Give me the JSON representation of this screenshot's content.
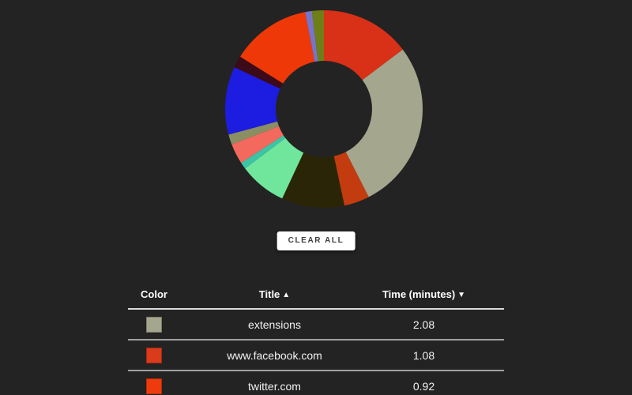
{
  "page": {
    "background": "#232323"
  },
  "chart_data": {
    "type": "donut",
    "legend_position": "none",
    "grid": false,
    "outer_radius_px": 125,
    "inner_radius_px": 61,
    "start_angle_deg": 0,
    "direction": "clockwise",
    "segments": [
      {
        "title": "www.facebook.com",
        "minutes": 1.08,
        "sweep_deg": 53,
        "color": "#d93018"
      },
      {
        "title": "extensions",
        "minutes": 2.08,
        "sweep_deg": 100,
        "color": "#a5a68e"
      },
      {
        "sweep_deg": 15,
        "color": "#c33c0f"
      },
      {
        "sweep_deg": 37,
        "color": "#2b2507"
      },
      {
        "sweep_deg": 28,
        "color": "#70e59c"
      },
      {
        "sweep_deg": 4,
        "color": "#3cc4a5"
      },
      {
        "sweep_deg": 12,
        "color": "#f4695e"
      },
      {
        "sweep_deg": 6,
        "color": "#8b8e63"
      },
      {
        "sweep_deg": 40,
        "color": "#1d1ce1"
      },
      {
        "sweep_deg": 7,
        "color": "#3c0a18"
      },
      {
        "title": "twitter.com",
        "minutes": 0.92,
        "sweep_deg": 47,
        "color": "#ee3807"
      },
      {
        "sweep_deg": 4,
        "color": "#7a74c9"
      },
      {
        "sweep_deg": 7,
        "color": "#6f7f17"
      }
    ]
  },
  "toolbar": {
    "clear_all_label": "CLEAR ALL"
  },
  "table": {
    "headers": {
      "color": "Color",
      "title": "Title",
      "title_sort": "▲",
      "time": "Time (minutes)",
      "time_sort": "▼"
    },
    "rows": [
      {
        "color": "#a5a68e",
        "title": "extensions",
        "time": "2.08"
      },
      {
        "color": "#d93b1b",
        "title": "www.facebook.com",
        "time": "1.08"
      },
      {
        "color": "#ee3b0e",
        "title": "twitter.com",
        "time": "0.92"
      }
    ]
  }
}
